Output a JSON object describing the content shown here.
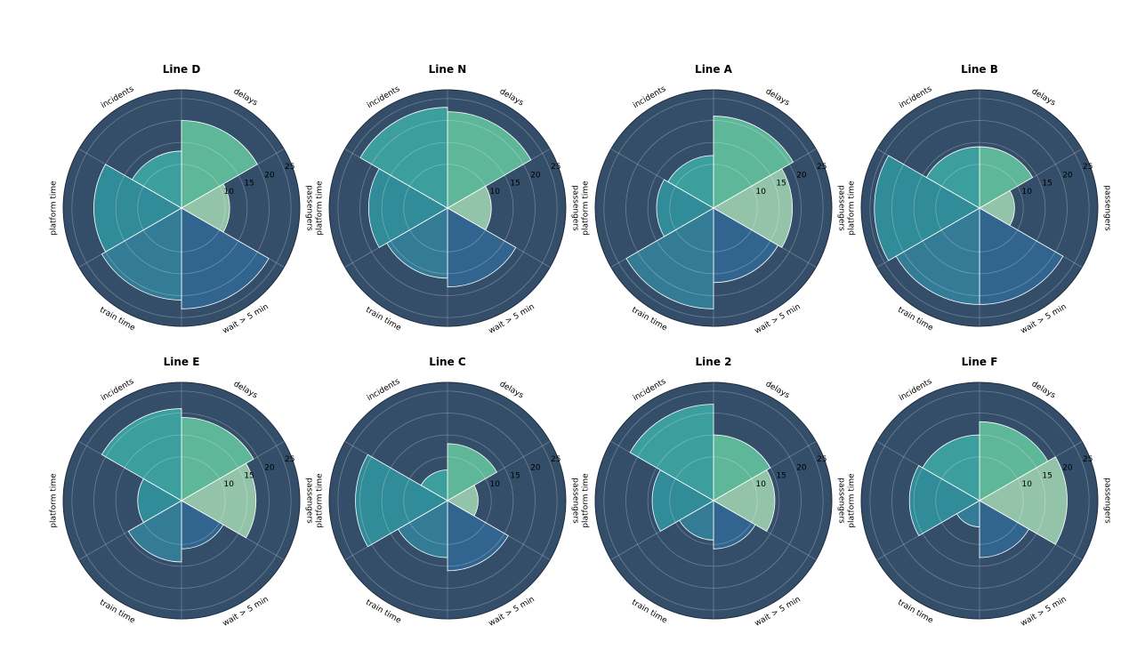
{
  "chart_data": {
    "type": "polar-bar",
    "categories": [
      "delays",
      "passengers",
      "wait > 5 min",
      "train time",
      "platform time",
      "incidents"
    ],
    "rlim": [
      0,
      27
    ],
    "rticks": [
      10,
      15,
      20,
      25
    ],
    "grid": true,
    "colors": [
      "#5fb79a",
      "#93c4a9",
      "#31658f",
      "#347b96",
      "#318c99",
      "#3d9e9e"
    ],
    "background_color": "#344d69",
    "panels": [
      {
        "title": "Line D",
        "values": [
          20,
          11,
          23,
          21,
          20,
          13
        ]
      },
      {
        "title": "Line N",
        "values": [
          22,
          10,
          18,
          16,
          18,
          23
        ]
      },
      {
        "title": "Line A",
        "values": [
          21,
          18,
          17,
          23,
          13,
          12
        ]
      },
      {
        "title": "Line B",
        "values": [
          14,
          8,
          22,
          22,
          24,
          14
        ]
      },
      {
        "title": "Line E",
        "values": [
          19,
          17,
          11,
          14,
          10,
          21
        ]
      },
      {
        "title": "Line C",
        "values": [
          13,
          7,
          16,
          13,
          21,
          7
        ]
      },
      {
        "title": "Line 2",
        "values": [
          15,
          14,
          11,
          9,
          14,
          22
        ]
      },
      {
        "title": "Line F",
        "values": [
          18,
          20,
          13,
          6,
          16,
          15
        ]
      }
    ]
  }
}
